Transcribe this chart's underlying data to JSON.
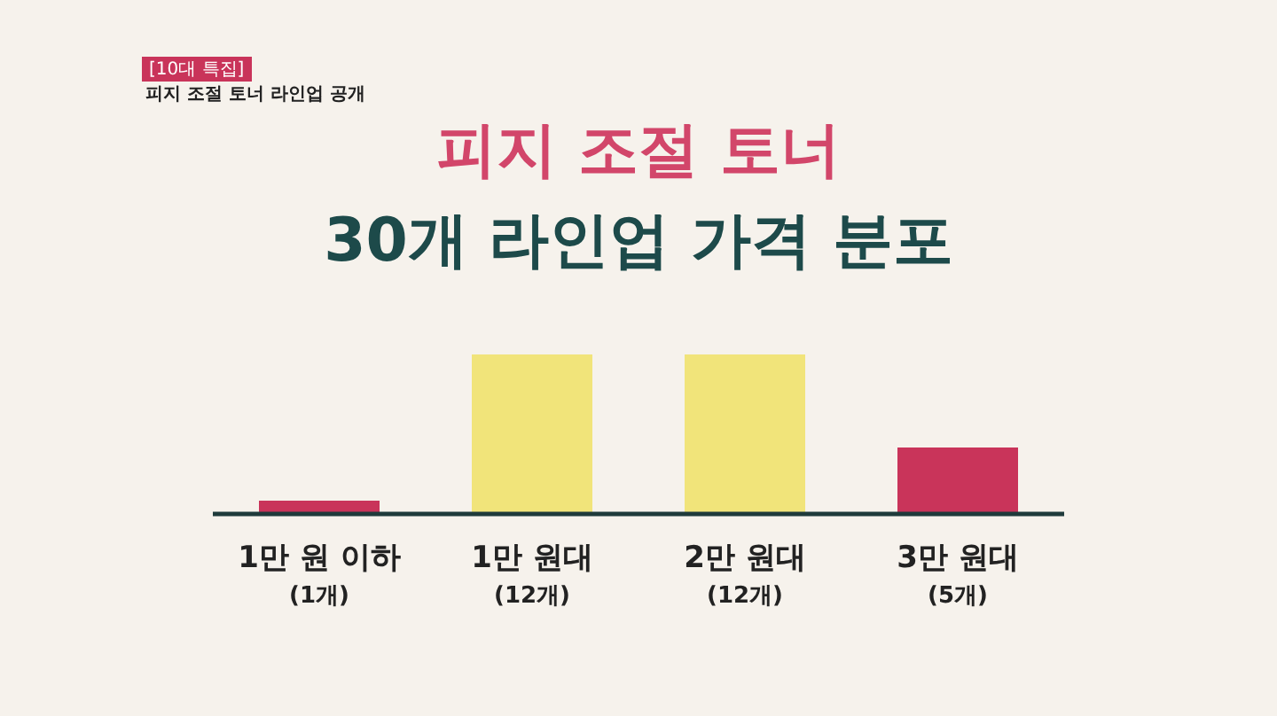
{
  "chart_data": {
    "type": "bar",
    "title": "피지 조절 토너",
    "subtitle": "30개 라인업 가격 분포",
    "annotations": [
      "[10대 특집]",
      "피지 조절 토너 라인업 공개"
    ],
    "categories": [
      "1만 원 이하",
      "1만 원대",
      "2만 원대",
      "3만 원대"
    ],
    "values": [
      1,
      12,
      12,
      5
    ],
    "value_labels": [
      "(1개)",
      "(12개)",
      "(12개)",
      "(5개)"
    ],
    "colors": [
      "#c9345a",
      "#f1e47a",
      "#f1e47a",
      "#c9345a"
    ]
  }
}
